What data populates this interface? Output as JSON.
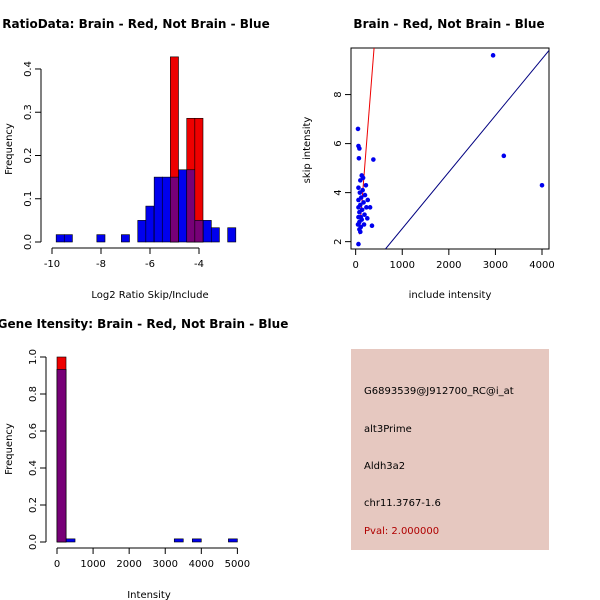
{
  "chart_data": [
    {
      "type": "bar",
      "title": "RatioData: Brain - Red, Not Brain - Blue",
      "xlabel": "Log2 Ratio Skip/Include",
      "ylabel": "Frequency",
      "xlim": [
        -10,
        -2
      ],
      "ylim": [
        0,
        0.43
      ],
      "xticks": [
        -10,
        -8,
        -6,
        -4
      ],
      "yticks": [
        0.0,
        0.1,
        0.2,
        0.3,
        0.4
      ],
      "bin_width": 0.333,
      "series": [
        {
          "name": "Not Brain",
          "color": "#0000ee",
          "bins": [
            {
              "x0": -9.83,
              "value": 0.017
            },
            {
              "x0": -9.5,
              "value": 0.017
            },
            {
              "x0": -8.17,
              "value": 0.017
            },
            {
              "x0": -7.17,
              "value": 0.017
            },
            {
              "x0": -6.5,
              "value": 0.05
            },
            {
              "x0": -6.17,
              "value": 0.083
            },
            {
              "x0": -5.83,
              "value": 0.15
            },
            {
              "x0": -5.5,
              "value": 0.15
            },
            {
              "x0": -5.17,
              "value": 0.15
            },
            {
              "x0": -4.83,
              "value": 0.167
            },
            {
              "x0": -4.5,
              "value": 0.167
            },
            {
              "x0": -4.17,
              "value": 0.05
            },
            {
              "x0": -3.83,
              "value": 0.05
            },
            {
              "x0": -3.5,
              "value": 0.033
            },
            {
              "x0": -2.83,
              "value": 0.033
            }
          ]
        },
        {
          "name": "Brain",
          "color": "#ee0000",
          "bins": [
            {
              "x0": -5.17,
              "value": 0.428
            },
            {
              "x0": -4.5,
              "value": 0.286
            },
            {
              "x0": -4.17,
              "value": 0.286
            }
          ]
        }
      ]
    },
    {
      "type": "scatter",
      "title": "Brain - Red, Not Brain - Blue",
      "xlabel": "include intensity",
      "ylabel": "skip intensity",
      "xlim": [
        -100,
        4150
      ],
      "ylim": [
        1.7,
        9.9
      ],
      "xticks": [
        0,
        1000,
        2000,
        3000,
        4000
      ],
      "yticks": [
        2,
        4,
        6,
        8
      ],
      "points_color": "#0000ee",
      "points": [
        {
          "x": 2950,
          "y": 9.6
        },
        {
          "x": 3180,
          "y": 5.5
        },
        {
          "x": 4000,
          "y": 4.3
        },
        {
          "x": 50,
          "y": 6.6
        },
        {
          "x": 60,
          "y": 5.9
        },
        {
          "x": 80,
          "y": 5.8
        },
        {
          "x": 70,
          "y": 5.4
        },
        {
          "x": 380,
          "y": 5.35
        },
        {
          "x": 130,
          "y": 4.7
        },
        {
          "x": 100,
          "y": 4.5
        },
        {
          "x": 160,
          "y": 4.6
        },
        {
          "x": 220,
          "y": 4.3
        },
        {
          "x": 60,
          "y": 4.2
        },
        {
          "x": 150,
          "y": 4.1
        },
        {
          "x": 90,
          "y": 4.0
        },
        {
          "x": 200,
          "y": 3.9
        },
        {
          "x": 120,
          "y": 3.8
        },
        {
          "x": 60,
          "y": 3.7
        },
        {
          "x": 260,
          "y": 3.7
        },
        {
          "x": 170,
          "y": 3.6
        },
        {
          "x": 100,
          "y": 3.5
        },
        {
          "x": 60,
          "y": 3.4
        },
        {
          "x": 230,
          "y": 3.4
        },
        {
          "x": 310,
          "y": 3.4
        },
        {
          "x": 140,
          "y": 3.3
        },
        {
          "x": 80,
          "y": 3.2
        },
        {
          "x": 190,
          "y": 3.1
        },
        {
          "x": 60,
          "y": 3.0
        },
        {
          "x": 110,
          "y": 3.0
        },
        {
          "x": 250,
          "y": 2.95
        },
        {
          "x": 130,
          "y": 2.9
        },
        {
          "x": 80,
          "y": 2.8
        },
        {
          "x": 50,
          "y": 2.7
        },
        {
          "x": 180,
          "y": 2.7
        },
        {
          "x": 350,
          "y": 2.65
        },
        {
          "x": 110,
          "y": 2.6
        },
        {
          "x": 80,
          "y": 2.5
        },
        {
          "x": 100,
          "y": 2.4
        },
        {
          "x": 60,
          "y": 1.9
        }
      ],
      "lines": [
        {
          "name": "brain-fit",
          "color": "#ee0000",
          "from": [
            80,
            2.3
          ],
          "to": [
            420,
            10.5
          ]
        },
        {
          "name": "not-brain-fit",
          "color": "#000080",
          "from": [
            640,
            1.7
          ],
          "to": [
            4150,
            9.8
          ]
        }
      ]
    },
    {
      "type": "bar",
      "title": "Gene Itensity: Brain - Red, Not Brain - Blue",
      "xlabel": "Intensity",
      "ylabel": "Frequency",
      "xlim": [
        0,
        5100
      ],
      "ylim": [
        0,
        1.0
      ],
      "xticks": [
        0,
        1000,
        2000,
        3000,
        4000,
        5000
      ],
      "yticks": [
        0.0,
        0.2,
        0.4,
        0.6,
        0.8,
        1.0
      ],
      "bin_width": 250,
      "series": [
        {
          "name": "Not Brain",
          "color": "#0000ee",
          "bins": [
            {
              "x0": 0,
              "value": 0.933
            },
            {
              "x0": 250,
              "value": 0.017
            },
            {
              "x0": 3250,
              "value": 0.017
            },
            {
              "x0": 3750,
              "value": 0.017
            },
            {
              "x0": 4750,
              "value": 0.017
            }
          ]
        },
        {
          "name": "Brain",
          "color": "#ee0000",
          "bins": [
            {
              "x0": 0,
              "value": 1.0
            }
          ]
        }
      ]
    }
  ],
  "info_panel": {
    "probe_id": "G6893539@J912700_RC@i_at",
    "event_type": "alt3Prime",
    "gene": "Aldh3a2",
    "location": "chr11.3767-1.6",
    "pval": "Pval: 2.000000"
  },
  "colors": {
    "brain": "#ee0000",
    "not_brain": "#0000ee",
    "overlap": "#770077",
    "panel_bg": "#e6c8c0"
  }
}
